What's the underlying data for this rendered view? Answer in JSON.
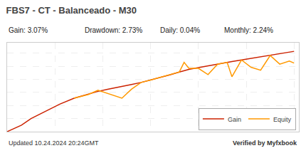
{
  "chart_data": {
    "type": "line",
    "title": "FBS7 - CT - Balanceado - M30",
    "annotations": [
      "Gain: 3.07%",
      "Drawdown: 2.73%",
      "Daily: 0.04%",
      "Monthly: 2.24%",
      "Updated 10.24.2024 20:24GMT",
      "Verified by Myfxbook"
    ],
    "series": [
      {
        "name": "Gain",
        "color": "#cc2200",
        "x": [
          0,
          3,
          5,
          8,
          11,
          14,
          17,
          19,
          21,
          24,
          26,
          28,
          30,
          32,
          34,
          36,
          37,
          38,
          40,
          42,
          44,
          46,
          47,
          49,
          51,
          53,
          55,
          57,
          59,
          60
        ],
        "values": [
          0.0,
          0.25,
          0.5,
          0.78,
          1.05,
          1.28,
          1.44,
          1.54,
          1.62,
          1.72,
          1.8,
          1.88,
          1.97,
          2.07,
          2.17,
          2.28,
          2.33,
          2.38,
          2.45,
          2.52,
          2.58,
          2.65,
          2.68,
          2.74,
          2.8,
          2.86,
          2.91,
          2.96,
          3.03,
          3.07
        ]
      },
      {
        "name": "Equity",
        "color": "#ff9900",
        "x": [
          14,
          17,
          19,
          21,
          24,
          26,
          28,
          30,
          32,
          34,
          36,
          37,
          38,
          40,
          42,
          44,
          46,
          47,
          49,
          51,
          53,
          55,
          57,
          59,
          60
        ],
        "values": [
          1.28,
          1.42,
          1.58,
          1.46,
          1.28,
          1.62,
          1.88,
          1.97,
          2.07,
          2.17,
          2.28,
          2.65,
          2.42,
          2.42,
          2.18,
          2.58,
          2.65,
          2.1,
          2.74,
          2.46,
          2.35,
          2.91,
          2.58,
          2.7,
          2.62
        ]
      }
    ],
    "xlim": [
      0,
      61
    ],
    "ylim": [
      0.0,
      3.4
    ],
    "xticks": [
      0,
      10,
      20,
      30,
      40,
      50,
      60
    ],
    "yticks": [
      0,
      0.5,
      1,
      1.5,
      2,
      2.5,
      3
    ],
    "grid": true,
    "tick_labels": false,
    "legend": "lower right"
  }
}
